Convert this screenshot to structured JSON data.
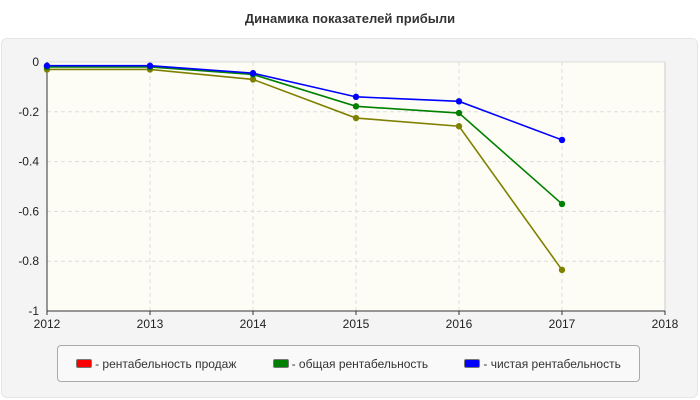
{
  "chart_data": {
    "type": "line",
    "title": "Динамика показателей прибыли",
    "x": [
      2012,
      2013,
      2014,
      2015,
      2016,
      2017
    ],
    "xlim": [
      2012,
      2018
    ],
    "ylim": [
      -1,
      0
    ],
    "xticks": [
      "2012",
      "2013",
      "2014",
      "2015",
      "2016",
      "2017",
      "2018"
    ],
    "yticks": [
      "0",
      "-0.2",
      "-0.4",
      "-0.6",
      "-0.8",
      "-1"
    ],
    "grid": true,
    "legend_position": "bottom",
    "series": [
      {
        "name": "- рентабельность продаж",
        "color": "#ff0000",
        "line_color": "#808000",
        "values": [
          -0.03,
          -0.03,
          -0.07,
          -0.225,
          -0.258,
          -0.835
        ]
      },
      {
        "name": "- общая рентабельность",
        "color": "#008000",
        "line_color": "#008000",
        "values": [
          -0.02,
          -0.02,
          -0.05,
          -0.178,
          -0.205,
          -0.57
        ]
      },
      {
        "name": "- чистая рентабельность",
        "color": "#0000ff",
        "line_color": "#0000ff",
        "values": [
          -0.015,
          -0.015,
          -0.045,
          -0.14,
          -0.158,
          -0.313
        ]
      }
    ]
  }
}
